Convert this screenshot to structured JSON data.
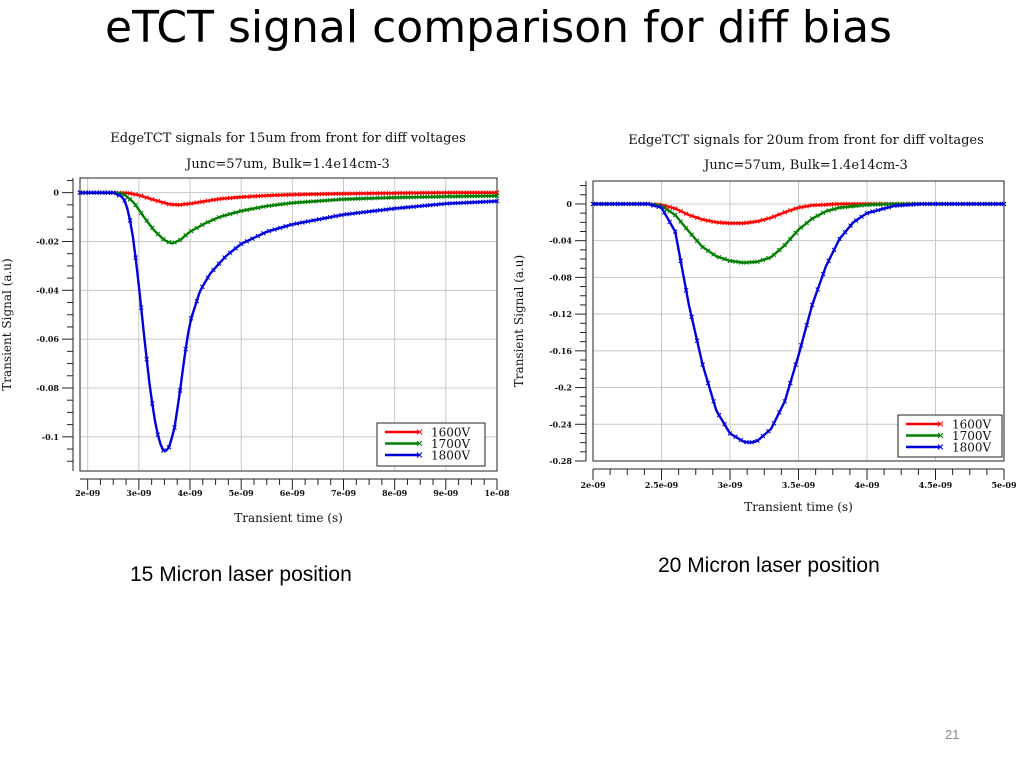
{
  "slide": {
    "title": "eTCT signal comparison for diff bias",
    "caption_left": "15 Micron laser position",
    "caption_right": "20 Micron laser position",
    "page_number": "21"
  },
  "chart_data": [
    {
      "type": "line",
      "title": "EdgeTCT signals for 15um from front for diff voltages",
      "subtitle": "Junc=57um, Bulk=1.4e14cm-3",
      "xlabel": "Transient time (s)",
      "ylabel": "Transient Signal (a.u)",
      "xlim": [
        1.85e-09,
        1e-08
      ],
      "ylim": [
        -0.114,
        0.006
      ],
      "x_ticks": [
        2e-09,
        3e-09,
        4e-09,
        5e-09,
        6e-09,
        7e-09,
        8e-09,
        9e-09,
        1e-08
      ],
      "x_tick_labels": [
        "2e-09",
        "3e-09",
        "4e-09",
        "5e-09",
        "6e-09",
        "7e-09",
        "8e-09",
        "9e-09",
        "1e-08"
      ],
      "y_ticks": [
        0,
        -0.02,
        -0.04,
        -0.06,
        -0.08,
        -0.1
      ],
      "y_tick_labels": [
        "0",
        "-0.02",
        "-0.04",
        "-0.06",
        "-0.08",
        "-0.1"
      ],
      "grid": true,
      "legend_position": "bottom-right",
      "series": [
        {
          "name": "1600V",
          "color": "#ff0000",
          "x": [
            1.85e-09,
            2.5e-09,
            2.8e-09,
            3e-09,
            3.3e-09,
            3.6e-09,
            3.8e-09,
            4e-09,
            4.3e-09,
            4.6e-09,
            5e-09,
            5.5e-09,
            6e-09,
            7e-09,
            8e-09,
            9e-09,
            1e-08
          ],
          "y": [
            0,
            0,
            -0.0002,
            -0.001,
            -0.003,
            -0.0048,
            -0.005,
            -0.0045,
            -0.0035,
            -0.0025,
            -0.0018,
            -0.0012,
            -0.0008,
            -0.0004,
            -0.0002,
            0,
            0
          ]
        },
        {
          "name": "1700V",
          "color": "#008000",
          "x": [
            1.85e-09,
            2.5e-09,
            2.7e-09,
            2.9e-09,
            3.1e-09,
            3.3e-09,
            3.5e-09,
            3.65e-09,
            3.8e-09,
            4e-09,
            4.3e-09,
            4.6e-09,
            5e-09,
            5.5e-09,
            6e-09,
            7e-09,
            8e-09,
            9e-09,
            1e-08
          ],
          "y": [
            0,
            0,
            -0.0005,
            -0.004,
            -0.01,
            -0.0155,
            -0.0195,
            -0.0208,
            -0.0195,
            -0.016,
            -0.0125,
            -0.0098,
            -0.0075,
            -0.0055,
            -0.0042,
            -0.0027,
            -0.002,
            -0.0016,
            -0.0013
          ]
        },
        {
          "name": "1800V",
          "color": "#0000dd",
          "x": [
            1.85e-09,
            2.5e-09,
            2.7e-09,
            2.8e-09,
            2.9e-09,
            3e-09,
            3.1e-09,
            3.2e-09,
            3.3e-09,
            3.4e-09,
            3.5e-09,
            3.6e-09,
            3.7e-09,
            3.8e-09,
            3.9e-09,
            4e-09,
            4.2e-09,
            4.4e-09,
            4.7e-09,
            5e-09,
            5.5e-09,
            6e-09,
            7e-09,
            8e-09,
            9e-09,
            1e-08
          ],
          "y": [
            0,
            0,
            -0.002,
            -0.008,
            -0.02,
            -0.038,
            -0.058,
            -0.077,
            -0.092,
            -0.102,
            -0.1065,
            -0.104,
            -0.096,
            -0.082,
            -0.066,
            -0.053,
            -0.04,
            -0.033,
            -0.026,
            -0.021,
            -0.016,
            -0.013,
            -0.009,
            -0.0065,
            -0.0045,
            -0.0035
          ]
        }
      ]
    },
    {
      "type": "line",
      "title": "EdgeTCT signals for 20um from front for diff voltages",
      "subtitle": "Junc=57um, Bulk=1.4e14cm-3",
      "xlabel": "Transient time (s)",
      "ylabel": "Transient Signal (a.u)",
      "xlim": [
        2e-09,
        5e-09
      ],
      "ylim": [
        -0.28,
        0.025
      ],
      "x_ticks": [
        2e-09,
        2.5e-09,
        3e-09,
        3.5e-09,
        4e-09,
        4.5e-09,
        5e-09
      ],
      "x_tick_labels": [
        "2e-09",
        "2.5e-09",
        "3e-09",
        "3.5e-09",
        "4e-09",
        "4.5e-09",
        "5e-09"
      ],
      "y_ticks": [
        0,
        -0.04,
        -0.08,
        -0.12,
        -0.16,
        -0.2,
        -0.24,
        -0.28
      ],
      "y_tick_labels": [
        "0",
        "-0.04",
        "-0.08",
        "-0.12",
        "-0.16",
        "-0.2",
        "-0.24",
        "-0.28"
      ],
      "grid": true,
      "legend_position": "bottom-right",
      "series": [
        {
          "name": "1600V",
          "color": "#ff0000",
          "x": [
            2e-09,
            2.4e-09,
            2.5e-09,
            2.6e-09,
            2.7e-09,
            2.8e-09,
            2.9e-09,
            3e-09,
            3.1e-09,
            3.2e-09,
            3.3e-09,
            3.4e-09,
            3.5e-09,
            3.6e-09,
            3.8e-09,
            4e-09,
            4.5e-09,
            5e-09
          ],
          "y": [
            0,
            0,
            -0.001,
            -0.005,
            -0.012,
            -0.017,
            -0.02,
            -0.021,
            -0.021,
            -0.019,
            -0.015,
            -0.009,
            -0.004,
            -0.0015,
            0,
            0,
            0,
            0
          ]
        },
        {
          "name": "1700V",
          "color": "#008000",
          "x": [
            2e-09,
            2.4e-09,
            2.5e-09,
            2.6e-09,
            2.7e-09,
            2.8e-09,
            2.9e-09,
            3e-09,
            3.1e-09,
            3.2e-09,
            3.3e-09,
            3.4e-09,
            3.5e-09,
            3.6e-09,
            3.7e-09,
            3.8e-09,
            4e-09,
            4.2e-09,
            4.5e-09,
            5e-09
          ],
          "y": [
            0,
            0,
            -0.002,
            -0.012,
            -0.03,
            -0.047,
            -0.057,
            -0.062,
            -0.064,
            -0.063,
            -0.058,
            -0.045,
            -0.028,
            -0.016,
            -0.008,
            -0.004,
            -0.001,
            0,
            0,
            0
          ]
        },
        {
          "name": "1800V",
          "color": "#0000dd",
          "x": [
            2e-09,
            2.4e-09,
            2.5e-09,
            2.6e-09,
            2.7e-09,
            2.8e-09,
            2.9e-09,
            3e-09,
            3.1e-09,
            3.15e-09,
            3.2e-09,
            3.3e-09,
            3.4e-09,
            3.5e-09,
            3.6e-09,
            3.7e-09,
            3.8e-09,
            3.9e-09,
            4e-09,
            4.2e-09,
            4.4e-09,
            5e-09
          ],
          "y": [
            0,
            0,
            -0.004,
            -0.03,
            -0.11,
            -0.175,
            -0.225,
            -0.25,
            -0.259,
            -0.26,
            -0.258,
            -0.245,
            -0.215,
            -0.165,
            -0.11,
            -0.068,
            -0.038,
            -0.02,
            -0.01,
            -0.002,
            0,
            0
          ]
        }
      ]
    }
  ]
}
